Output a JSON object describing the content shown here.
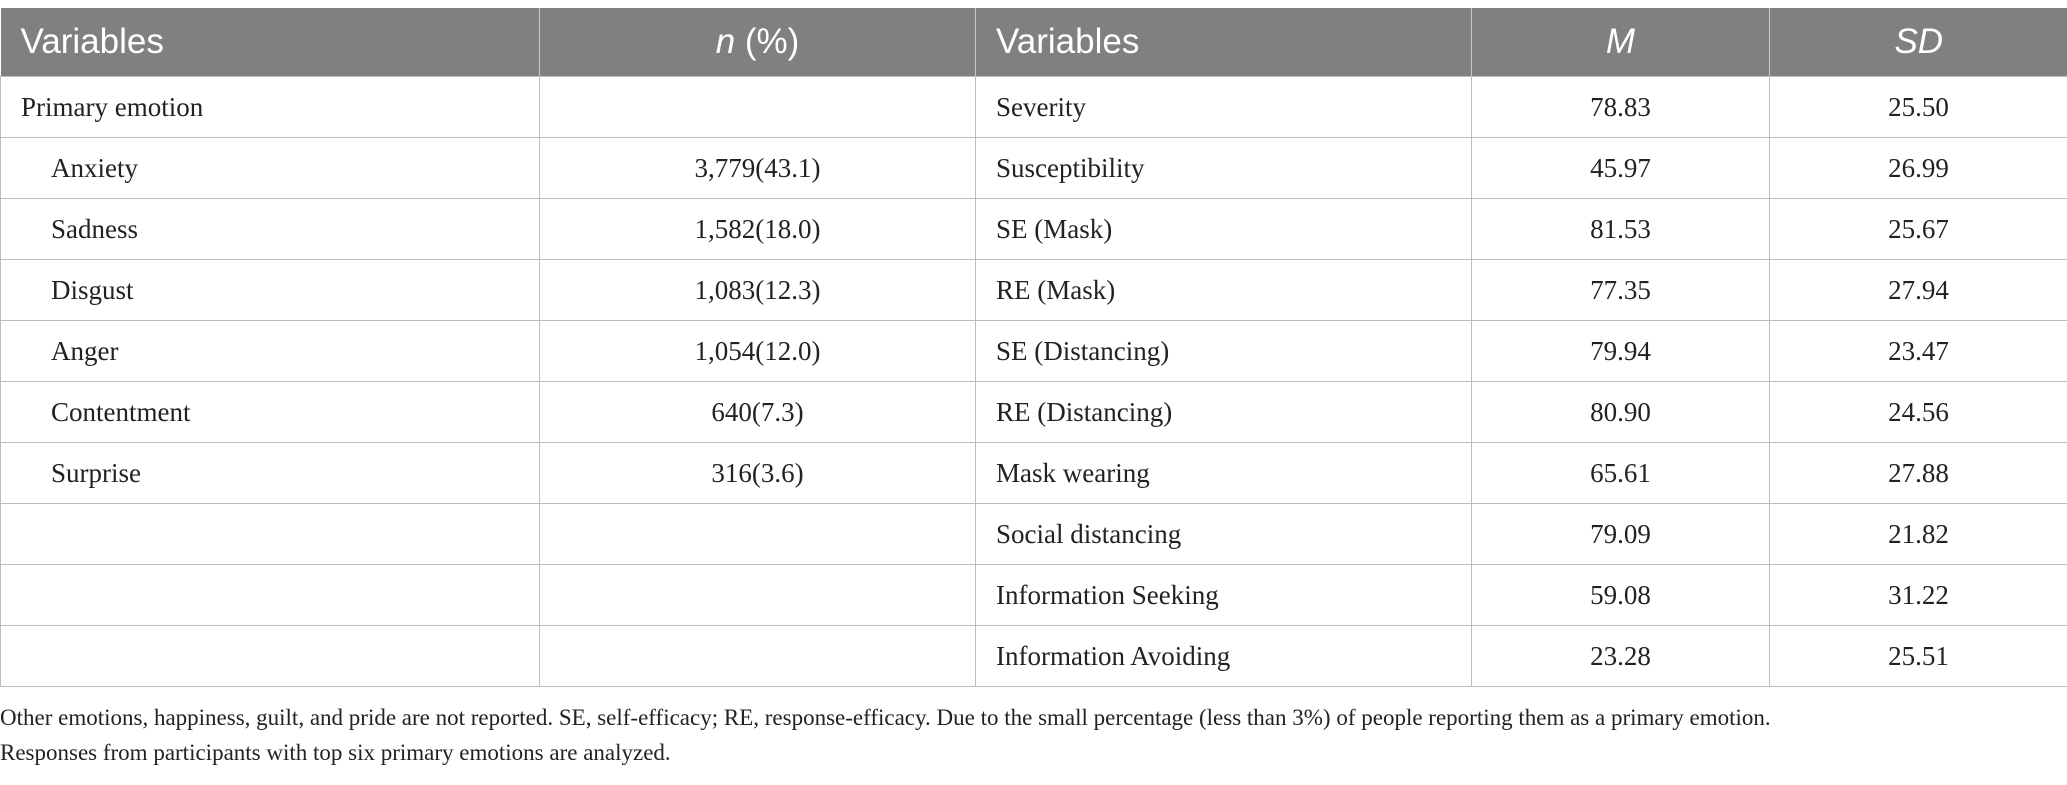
{
  "header": {
    "col1": "Variables",
    "col2_italic": "n",
    "col2_rest": " (%)",
    "col3": "Variables",
    "col4": "M",
    "col5": "SD"
  },
  "rows": [
    {
      "left_var": "Primary emotion",
      "left_val": "",
      "right_var": "Severity",
      "m": "78.83",
      "sd": "25.50"
    },
    {
      "left_var": "Anxiety",
      "left_val": "3,779(43.1)",
      "right_var": "Susceptibility",
      "m": "45.97",
      "sd": "26.99"
    },
    {
      "left_var": "Sadness",
      "left_val": "1,582(18.0)",
      "right_var": "SE (Mask)",
      "m": "81.53",
      "sd": "25.67"
    },
    {
      "left_var": "Disgust",
      "left_val": "1,083(12.3)",
      "right_var": "RE (Mask)",
      "m": "77.35",
      "sd": "27.94"
    },
    {
      "left_var": "Anger",
      "left_val": "1,054(12.0)",
      "right_var": "SE (Distancing)",
      "m": "79.94",
      "sd": "23.47"
    },
    {
      "left_var": "Contentment",
      "left_val": "640(7.3)",
      "right_var": "RE (Distancing)",
      "m": "80.90",
      "sd": "24.56"
    },
    {
      "left_var": "Surprise",
      "left_val": "316(3.6)",
      "right_var": "Mask wearing",
      "m": "65.61",
      "sd": "27.88"
    },
    {
      "left_var": "",
      "left_val": "",
      "right_var": "Social distancing",
      "m": "79.09",
      "sd": "21.82"
    },
    {
      "left_var": "",
      "left_val": "",
      "right_var": "Information Seeking",
      "m": "59.08",
      "sd": "31.22"
    },
    {
      "left_var": "",
      "left_val": "",
      "right_var": "Information Avoiding",
      "m": "23.28",
      "sd": "25.51"
    }
  ],
  "footnote": {
    "line1": "Other emotions, happiness, guilt, and pride are not reported. SE, self-efficacy; RE, response-efficacy. Due to the small percentage (less than 3%) of people reporting them as a primary emotion.",
    "line2": "Responses from participants with top six primary emotions are analyzed."
  }
}
